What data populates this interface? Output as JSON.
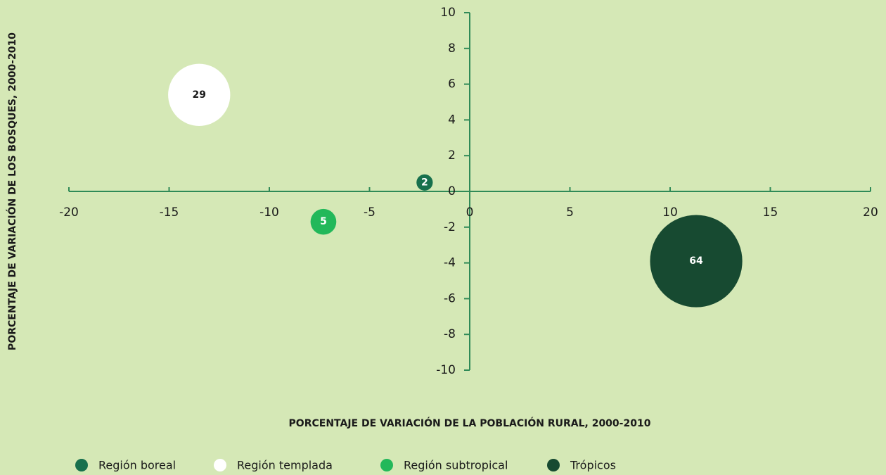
{
  "chart_data": {
    "type": "bubble",
    "xlabel": "PORCENTAJE DE VARIACIÓN DE LA POBLACIÓN RURAL, 2000-2010",
    "ylabel": "PORCENTAJE DE VARIACIÓN DE LOS BOSQUES, 2000-2010",
    "xlim": [
      -20,
      20
    ],
    "xticks": [
      -20,
      -15,
      -10,
      -5,
      0,
      5,
      10,
      15,
      20
    ],
    "ylim": [
      -10,
      10
    ],
    "yticks": [
      -10,
      -8,
      -6,
      -4,
      -2,
      0,
      2,
      4,
      6,
      8,
      10
    ],
    "axis_color": "#2f8a57",
    "series": [
      {
        "name": "Región boreal",
        "color": "#17704d",
        "label_color": "#ffffff",
        "x": [
          -2.25
        ],
        "values": [
          0.5
        ],
        "sizes": [
          2
        ]
      },
      {
        "name": "Región templada",
        "color": "#ffffff",
        "label_color": "#1a1a1a",
        "x": [
          -13.5
        ],
        "values": [
          5.4
        ],
        "sizes": [
          29
        ]
      },
      {
        "name": "Región subtropical",
        "color": "#22b85a",
        "label_color": "#ffffff",
        "x": [
          -7.3
        ],
        "values": [
          -1.7
        ],
        "sizes": [
          5
        ]
      },
      {
        "name": "Trópicos",
        "color": "#174a31",
        "label_color": "#ffffff",
        "x": [
          11.3
        ],
        "values": [
          -3.9
        ],
        "sizes": [
          64
        ]
      }
    ]
  }
}
